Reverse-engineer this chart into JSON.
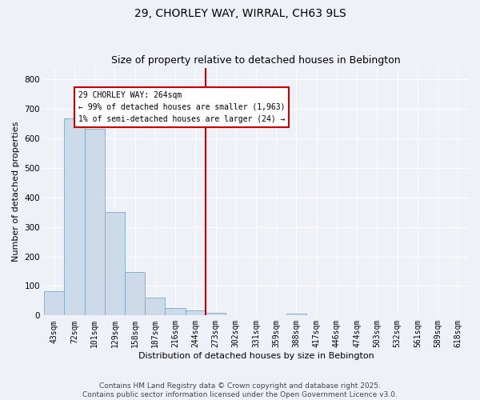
{
  "title_line1": "29, CHORLEY WAY, WIRRAL, CH63 9LS",
  "title_line2": "Size of property relative to detached houses in Bebington",
  "xlabel": "Distribution of detached houses by size in Bebington",
  "ylabel": "Number of detached properties",
  "categories": [
    "43sqm",
    "72sqm",
    "101sqm",
    "129sqm",
    "158sqm",
    "187sqm",
    "216sqm",
    "244sqm",
    "273sqm",
    "302sqm",
    "331sqm",
    "359sqm",
    "388sqm",
    "417sqm",
    "446sqm",
    "474sqm",
    "503sqm",
    "532sqm",
    "561sqm",
    "589sqm",
    "618sqm"
  ],
  "values": [
    82,
    668,
    632,
    352,
    148,
    60,
    25,
    18,
    10,
    0,
    0,
    0,
    5,
    0,
    0,
    0,
    0,
    0,
    0,
    0,
    0
  ],
  "bar_color": "#ccdaea",
  "bar_edge_color": "#7aaac8",
  "vline_color": "#cc0000",
  "annotation_text": "29 CHORLEY WAY: 264sqm\n← 99% of detached houses are smaller (1,963)\n1% of semi-detached houses are larger (24) →",
  "annotation_box_color": "#cc0000",
  "ylim": [
    0,
    840
  ],
  "yticks": [
    0,
    100,
    200,
    300,
    400,
    500,
    600,
    700,
    800
  ],
  "footer_line1": "Contains HM Land Registry data © Crown copyright and database right 2025.",
  "footer_line2": "Contains public sector information licensed under the Open Government Licence v3.0.",
  "bg_color": "#eef2f8",
  "plot_bg_color": "#eef2f8",
  "grid_color": "#ffffff",
  "title_fontsize": 10,
  "subtitle_fontsize": 9,
  "footer_fontsize": 6.5,
  "axis_label_fontsize": 8,
  "tick_fontsize": 7
}
